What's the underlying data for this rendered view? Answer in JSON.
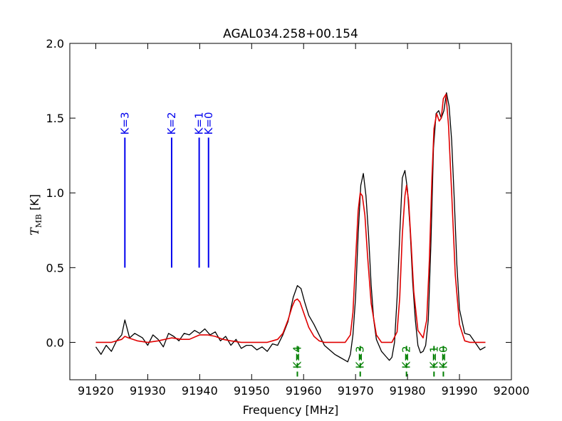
{
  "chart_data": {
    "type": "line",
    "title": "AGAL034.258+00.154",
    "xlabel": "Frequency [MHz]",
    "ylabel_main": "T",
    "ylabel_sub": "MB",
    "ylabel_unit": " [K]",
    "xlim": [
      91915,
      92000
    ],
    "ylim": [
      -0.25,
      2.0
    ],
    "xticks": [
      "91920",
      "91930",
      "91940",
      "91950",
      "91960",
      "91970",
      "91980",
      "91990",
      "92000"
    ],
    "yticks": [
      "0.0",
      "0.5",
      "1.0",
      "1.5",
      "2.0"
    ],
    "colors": {
      "observed": "#000000",
      "fit": "#e00000",
      "upper_markers": "#0000ee",
      "lower_markers": "#007f00",
      "axes": "#000000"
    },
    "blue_markers": [
      {
        "label": "K=3",
        "x": 91925.6,
        "y_start": 0.5,
        "y_end": 1.37
      },
      {
        "label": "K=2",
        "x": 91934.6,
        "y_start": 0.5,
        "y_end": 1.37
      },
      {
        "label": "K=1",
        "x": 91939.9,
        "y_start": 0.5,
        "y_end": 1.37
      },
      {
        "label": "K=0",
        "x": 91941.7,
        "y_start": 0.5,
        "y_end": 1.37
      }
    ],
    "green_markers": [
      {
        "label": "K=4",
        "x": 91958.8
      },
      {
        "label": "K=3",
        "x": 91970.9
      },
      {
        "label": "K=2",
        "x": 91979.8
      },
      {
        "label": "K=1",
        "x": 91985.1
      },
      {
        "label": "K=0",
        "x": 91986.9
      }
    ],
    "series": [
      {
        "role": "observed",
        "x": [
          91920.0,
          91921.0,
          91922.0,
          91923.0,
          91924.0,
          91925.0,
          91925.6,
          91926.5,
          91927.5,
          91929.0,
          91930.0,
          91931.0,
          91932.0,
          91933.0,
          91934.0,
          91935.0,
          91936.0,
          91937.0,
          91938.0,
          91939.0,
          91940.0,
          91941.0,
          91942.0,
          91943.0,
          91944.0,
          91945.0,
          91946.0,
          91947.0,
          91948.0,
          91949.0,
          91950.0,
          91951.0,
          91952.0,
          91953.0,
          91954.0,
          91955.0,
          91956.0,
          91957.0,
          91958.0,
          91958.8,
          91959.5,
          91960.2,
          91961.0,
          91962.0,
          91963.0,
          91964.0,
          91965.0,
          91966.0,
          91967.0,
          91968.0,
          91968.5,
          91969.0,
          91969.5,
          91970.0,
          91970.5,
          91971.0,
          91971.5,
          91972.0,
          91972.5,
          91973.0,
          91973.5,
          91974.0,
          91975.0,
          91976.0,
          91976.5,
          91977.0,
          91977.5,
          91978.0,
          91978.5,
          91979.0,
          91979.5,
          91980.0,
          91980.5,
          91981.0,
          91981.5,
          91982.0,
          91982.5,
          91983.0,
          91983.5,
          91984.0,
          91984.5,
          91985.0,
          91985.5,
          91986.0,
          91986.5,
          91987.0,
          91987.5,
          91988.0,
          91988.5,
          91989.0,
          91989.5,
          91990.0,
          91991.0,
          91992.0,
          91993.0,
          91994.0,
          91995.0
        ],
        "y": [
          -0.03,
          -0.08,
          -0.02,
          -0.06,
          0.01,
          0.05,
          0.15,
          0.03,
          0.06,
          0.03,
          -0.02,
          0.05,
          0.02,
          -0.03,
          0.06,
          0.04,
          0.01,
          0.06,
          0.05,
          0.08,
          0.06,
          0.09,
          0.05,
          0.07,
          0.01,
          0.04,
          -0.02,
          0.02,
          -0.04,
          -0.02,
          -0.02,
          -0.05,
          -0.03,
          -0.06,
          -0.01,
          -0.02,
          0.05,
          0.14,
          0.3,
          0.38,
          0.36,
          0.27,
          0.18,
          0.12,
          0.05,
          -0.02,
          -0.05,
          -0.08,
          -0.1,
          -0.12,
          -0.13,
          -0.08,
          0.05,
          0.3,
          0.72,
          1.05,
          1.13,
          0.98,
          0.72,
          0.38,
          0.15,
          0.02,
          -0.06,
          -0.1,
          -0.12,
          -0.1,
          0.0,
          0.3,
          0.72,
          1.1,
          1.15,
          1.02,
          0.75,
          0.4,
          0.15,
          -0.02,
          -0.07,
          -0.06,
          -0.02,
          0.15,
          0.65,
          1.3,
          1.53,
          1.55,
          1.5,
          1.55,
          1.67,
          1.58,
          1.35,
          0.95,
          0.52,
          0.22,
          0.06,
          0.05,
          0.0,
          -0.05,
          -0.03
        ]
      },
      {
        "role": "fit",
        "x": [
          91920.0,
          91923.0,
          91925.0,
          91925.6,
          91926.3,
          91928.0,
          91930.0,
          91932.0,
          91934.6,
          91936.5,
          91938.0,
          91940.0,
          91941.5,
          91943.0,
          91944.5,
          91946.0,
          91948.0,
          91950.0,
          91953.0,
          91955.0,
          91956.0,
          91957.0,
          91957.8,
          91958.3,
          91958.8,
          91959.3,
          91960.0,
          91961.0,
          91962.0,
          91963.0,
          91964.0,
          91966.0,
          91968.0,
          91969.0,
          91969.5,
          91970.0,
          91970.5,
          91970.9,
          91971.3,
          91971.8,
          91972.3,
          91973.0,
          91974.0,
          91975.0,
          91977.0,
          91978.0,
          91978.5,
          91979.0,
          91979.5,
          91979.8,
          91980.2,
          91980.7,
          91981.2,
          91982.0,
          91983.0,
          91983.7,
          91984.2,
          91984.7,
          91985.1,
          91985.6,
          91986.1,
          91986.5,
          91986.9,
          91987.4,
          91987.9,
          91988.5,
          91989.2,
          91990.0,
          91991.0,
          91992.0,
          91995.0
        ],
        "y": [
          0.0,
          0.0,
          0.02,
          0.04,
          0.03,
          0.01,
          0.0,
          0.01,
          0.03,
          0.02,
          0.02,
          0.05,
          0.05,
          0.04,
          0.02,
          0.01,
          0.0,
          0.0,
          0.0,
          0.02,
          0.06,
          0.15,
          0.24,
          0.28,
          0.29,
          0.27,
          0.2,
          0.1,
          0.04,
          0.01,
          0.0,
          0.0,
          0.0,
          0.05,
          0.2,
          0.55,
          0.88,
          1.0,
          0.98,
          0.85,
          0.58,
          0.26,
          0.05,
          0.0,
          0.0,
          0.07,
          0.3,
          0.72,
          0.98,
          1.05,
          0.95,
          0.66,
          0.34,
          0.08,
          0.03,
          0.15,
          0.55,
          1.1,
          1.43,
          1.53,
          1.48,
          1.5,
          1.63,
          1.66,
          1.45,
          1.0,
          0.45,
          0.12,
          0.01,
          0.0,
          0.0
        ]
      }
    ]
  }
}
